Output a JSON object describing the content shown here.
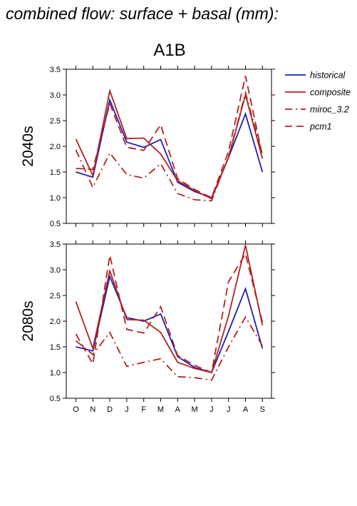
{
  "page": {
    "title": "combined flow: surface + basal (mm):",
    "scenario": "A1B"
  },
  "chart_data": [
    {
      "type": "line",
      "panel_label": "2040s",
      "categories": [
        "O",
        "N",
        "D",
        "J",
        "F",
        "M",
        "A",
        "M",
        "J",
        "J",
        "A",
        "S"
      ],
      "ylim": [
        0.5,
        3.5
      ],
      "yticks": [
        "0.5",
        "1.0",
        "1.5",
        "2.0",
        "2.5",
        "3.0",
        "3.5"
      ],
      "grid": false,
      "legend_position": "right",
      "series": [
        {
          "name": "historical",
          "color": "#1f1fb4",
          "style": "solid",
          "values": [
            1.5,
            1.4,
            2.9,
            2.08,
            1.98,
            2.13,
            1.3,
            1.12,
            1.0,
            1.78,
            2.63,
            1.5
          ]
        },
        {
          "name": "composite",
          "color": "#b22222",
          "style": "solid",
          "values": [
            2.14,
            1.43,
            3.08,
            2.15,
            2.16,
            1.85,
            1.33,
            1.14,
            0.98,
            1.78,
            3.0,
            1.76
          ]
        },
        {
          "name": "miroc_3.2",
          "color": "#b22222",
          "style": "dashdot",
          "values": [
            1.93,
            1.2,
            1.87,
            1.45,
            1.38,
            1.66,
            1.08,
            0.96,
            0.94,
            1.8,
            3.04,
            1.84
          ]
        },
        {
          "name": "pcm1",
          "color": "#b22222",
          "style": "dashed",
          "values": [
            1.57,
            1.55,
            2.83,
            1.98,
            1.92,
            2.42,
            1.37,
            1.16,
            1.0,
            1.9,
            3.37,
            1.82
          ]
        }
      ]
    },
    {
      "type": "line",
      "panel_label": "2080s",
      "categories": [
        "O",
        "N",
        "D",
        "J",
        "F",
        "M",
        "A",
        "M",
        "J",
        "J",
        "A",
        "S"
      ],
      "ylim": [
        0.5,
        3.5
      ],
      "yticks": [
        "0.5",
        "1.0",
        "1.5",
        "2.0",
        "2.5",
        "3.0",
        "3.5"
      ],
      "grid": false,
      "series": [
        {
          "name": "historical",
          "color": "#1f1fb4",
          "style": "solid",
          "values": [
            1.5,
            1.42,
            2.87,
            2.07,
            2.0,
            2.14,
            1.31,
            1.1,
            1.0,
            1.8,
            2.63,
            1.47
          ]
        },
        {
          "name": "composite",
          "color": "#b22222",
          "style": "solid",
          "values": [
            2.38,
            1.47,
            2.98,
            2.03,
            2.02,
            1.78,
            1.2,
            1.08,
            1.0,
            2.1,
            3.48,
            1.92
          ]
        },
        {
          "name": "miroc_3.2",
          "color": "#b22222",
          "style": "dashdot",
          "values": [
            1.62,
            1.35,
            1.78,
            1.12,
            1.2,
            1.27,
            0.92,
            0.9,
            0.85,
            1.5,
            2.08,
            1.52
          ]
        },
        {
          "name": "pcm1",
          "color": "#b22222",
          "style": "dashed",
          "values": [
            1.75,
            1.17,
            3.28,
            1.84,
            1.77,
            2.28,
            1.33,
            1.14,
            1.0,
            2.77,
            3.31,
            1.98
          ]
        }
      ]
    }
  ]
}
